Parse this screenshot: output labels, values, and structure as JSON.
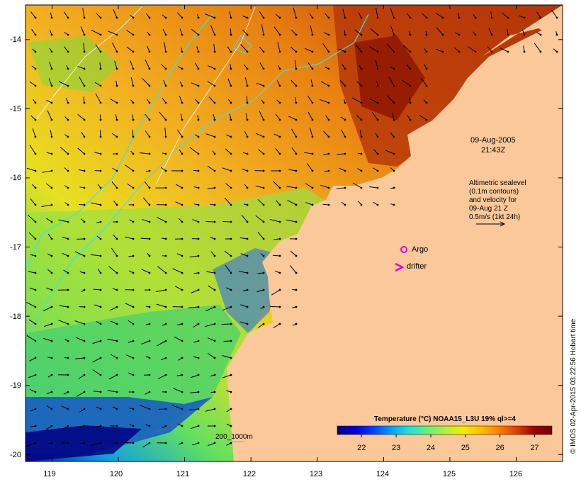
{
  "map": {
    "lon_range": [
      118.6,
      126.7
    ],
    "lat_range": [
      -20.1,
      -13.5
    ],
    "lon_ticks": [
      119,
      120,
      121,
      122,
      123,
      124,
      125,
      126
    ],
    "lat_ticks": [
      -14,
      -15,
      -16,
      -17,
      -18,
      -19,
      -20
    ],
    "lon_tick_labels": [
      "119",
      "120",
      "121",
      "122",
      "123",
      "124",
      "125",
      "126"
    ],
    "lat_tick_labels": [
      "-14",
      "-15",
      "-16",
      "-17",
      "-18",
      "-19",
      "-20"
    ],
    "land_color": "#fbc89a"
  },
  "annotations": {
    "date": "09-Aug-2005",
    "time": "21:43Z",
    "altimetry_line1": "Altimetric sealevel",
    "altimetry_line2": "(0.1m contours)",
    "altimetry_line3": "and velocity for",
    "altimetry_line4": "09-Aug 21 Z",
    "altimetry_line5": "0.5m/s (1kt 24h)",
    "argo_label": "Argo",
    "drifter_label": "drifter",
    "bathy_label": "200_1000m"
  },
  "colorbar": {
    "title": "Temperature (°C) NOAA15_L3U 19% ql>=4",
    "range": [
      21.3,
      27.5
    ],
    "ticks": [
      22,
      23,
      24,
      25,
      26,
      27
    ],
    "tick_labels": [
      "22",
      "23",
      "24",
      "25",
      "26",
      "27"
    ],
    "colors": [
      "#00007f",
      "#0000d8",
      "#0040ff",
      "#00a0ff",
      "#20e0e0",
      "#60f080",
      "#b0f040",
      "#f0f000",
      "#ffc000",
      "#ff8000",
      "#e04000",
      "#a00000",
      "#700000"
    ]
  },
  "credit": "© IMOS 02-Apr-2015 03:22:56 Hobart time"
}
